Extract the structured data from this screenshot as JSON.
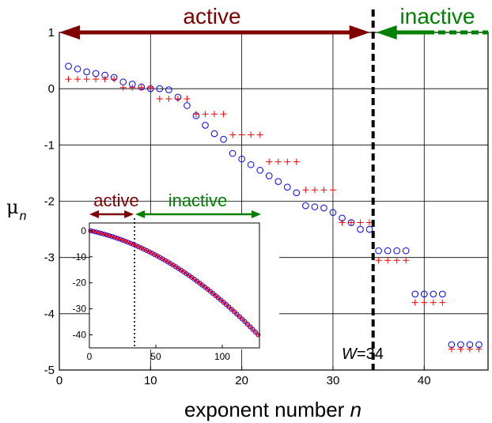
{
  "chart_data": [
    {
      "type": "scatter",
      "xlabel_prefix": "exponent number ",
      "xlabel_var": "n",
      "ylabel_main": "μ",
      "ylabel_sub": "n",
      "xlim": [
        0,
        47
      ],
      "ylim": [
        -5,
        1
      ],
      "xticks": [
        "0",
        "10",
        "20",
        "30",
        "40"
      ],
      "yticks": [
        "1",
        "0",
        "-1",
        "-2",
        "-3",
        "-4",
        "-5"
      ],
      "grid": true,
      "series": [
        {
          "marker": "circle",
          "color": "#0000ff",
          "x": [
            1,
            2,
            3,
            4,
            5,
            6,
            7,
            8,
            9,
            10,
            11,
            12,
            13,
            14,
            15,
            16,
            17,
            18,
            19,
            20,
            21,
            22,
            23,
            24,
            25,
            26,
            27,
            28,
            29,
            30,
            31,
            32,
            33,
            34,
            35,
            36,
            37,
            38,
            39,
            40,
            41,
            42,
            43,
            44,
            45,
            46
          ],
          "y": [
            0.4,
            0.35,
            0.3,
            0.27,
            0.24,
            0.2,
            0.12,
            0.08,
            0.03,
            0.0,
            0.0,
            -0.02,
            -0.15,
            -0.3,
            -0.48,
            -0.65,
            -0.8,
            -0.9,
            -1.15,
            -1.25,
            -1.35,
            -1.45,
            -1.55,
            -1.65,
            -1.75,
            -1.85,
            -2.08,
            -2.1,
            -2.12,
            -2.2,
            -2.3,
            -2.38,
            -2.5,
            -2.5,
            -2.88,
            -2.88,
            -2.88,
            -2.88,
            -3.65,
            -3.65,
            -3.65,
            -3.65,
            -4.55,
            -4.55,
            -4.55,
            -4.55
          ]
        },
        {
          "marker": "plus",
          "color": "#ff0000",
          "x": [
            1,
            2,
            3,
            4,
            5,
            6,
            7,
            8,
            9,
            10,
            11,
            12,
            13,
            14,
            15,
            16,
            17,
            18,
            19,
            20,
            21,
            22,
            23,
            24,
            25,
            26,
            27,
            28,
            29,
            30,
            31,
            32,
            33,
            34,
            35,
            36,
            37,
            38,
            39,
            40,
            41,
            42,
            43,
            44,
            45,
            46
          ],
          "y": [
            0.17,
            0.17,
            0.17,
            0.17,
            0.17,
            0.17,
            0.02,
            0.02,
            0.02,
            0.02,
            -0.18,
            -0.18,
            -0.18,
            -0.18,
            -0.45,
            -0.45,
            -0.45,
            -0.45,
            -0.82,
            -0.82,
            -0.82,
            -0.82,
            -1.3,
            -1.3,
            -1.3,
            -1.3,
            -1.8,
            -1.8,
            -1.8,
            -1.8,
            -2.38,
            -2.38,
            -2.38,
            -2.38,
            -3.05,
            -3.05,
            -3.05,
            -3.05,
            -3.8,
            -3.8,
            -3.8,
            -3.8,
            -4.63,
            -4.63,
            -4.63,
            -4.63
          ]
        }
      ],
      "annotations": {
        "active_label": "active",
        "inactive_label": "inactive",
        "boundary_label_var": "W",
        "boundary_label_value": "=34",
        "boundary_x": 34.4
      },
      "colors": {
        "active": "#800000",
        "inactive": "#008000"
      }
    },
    {
      "type": "scatter",
      "inset": true,
      "xlim": [
        0,
        128
      ],
      "ylim": [
        -45,
        3
      ],
      "xticks": [
        "0",
        "50",
        "100"
      ],
      "yticks": [
        "0",
        "-10",
        "-20",
        "-30",
        "-40"
      ],
      "grid": false,
      "boundary_x": 34,
      "series": [
        {
          "marker": "circle",
          "color": "#0000ff",
          "n_from": 1,
          "n_to": 128,
          "formula": "quadratic",
          "end_value": -40.5
        },
        {
          "marker": "plus",
          "color": "#ff0000",
          "n_from": 1,
          "n_to": 128,
          "formula": "quadratic",
          "end_value": -40.5
        }
      ],
      "annotations": {
        "active_label": "active",
        "inactive_label": "inactive"
      }
    }
  ]
}
